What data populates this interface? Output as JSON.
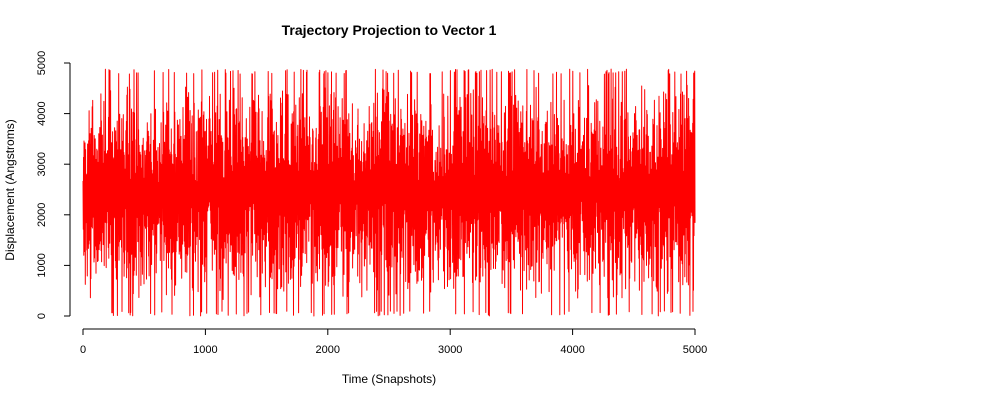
{
  "chart_data": {
    "type": "line",
    "title": "Trajectory Projection to Vector 1",
    "xlabel": "Time (Snapshots)",
    "ylabel": "Displacement (Angstroms)",
    "xlim": [
      0,
      5000
    ],
    "ylim": [
      0,
      5000
    ],
    "xticks": [
      "0",
      "1000",
      "2000",
      "3000",
      "4000",
      "5000"
    ],
    "yticks": [
      "0",
      "1000",
      "2000",
      "3000",
      "4000",
      "5000"
    ],
    "grid": false,
    "legend": "none",
    "series": [
      {
        "color": "#ff0000",
        "n_points": 5000,
        "x_range": [
          0,
          5000
        ],
        "y_min": 0,
        "y_max": 4880,
        "y_typical_low": 300,
        "y_typical_high": 4600,
        "pattern": "dense high-frequency oscillation spanning nearly the full y range"
      }
    ]
  }
}
